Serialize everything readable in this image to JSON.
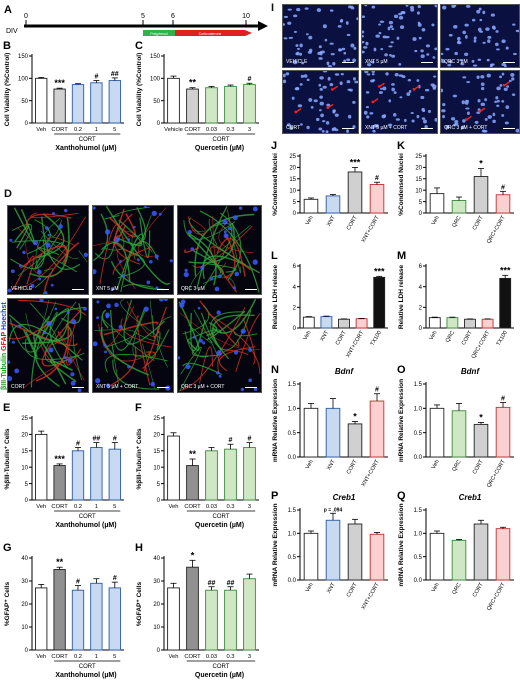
{
  "panel_letters": [
    "A",
    "B",
    "C",
    "D",
    "E",
    "F",
    "G",
    "H",
    "I",
    "J",
    "K",
    "L",
    "M",
    "N",
    "O",
    "P",
    "Q"
  ],
  "timeline": {
    "axis_label": "DIV",
    "ticks": [
      0,
      5,
      6,
      10
    ],
    "bar1": "Polyphenol",
    "bar2": "Corticosterone",
    "color1": "#2fb24a",
    "color2": "#e02020"
  },
  "colors": {
    "veh": "#ffffff",
    "cort": "#d0d0d0",
    "cort_dark": "#909090",
    "xnt": "#c8daf2",
    "xnt_edge": "#2a5aa8",
    "qrc": "#cfe8c4",
    "qrc_edge": "#3a8a3a",
    "combo": "#fbd0d0",
    "combo_edge": "#c03030",
    "tx": "#111111"
  },
  "microscopy_D": {
    "side_label_a": "βIII-Tubulin",
    "side_label_b": "GFAP",
    "side_label_c": "Hoechst",
    "captions": [
      "VEHICLE",
      "XNT 5 µM",
      "QRC 3 µM",
      "CORT",
      "XNT 5 µM + CORT",
      "QRC 3 µM + CORT"
    ]
  },
  "microscopy_I": {
    "captions": [
      "VEHICLE",
      "XNT 5 µM",
      "QRC 3 µM",
      "CORT",
      "XNT 5 µM + CORT",
      "QRC 3 µM + CORT"
    ]
  },
  "chart_data": [
    {
      "panel": "B",
      "type": "bar",
      "categories": [
        "Veh",
        "CORT",
        "0.2",
        "1",
        "5"
      ],
      "values": [
        100,
        76,
        86,
        90,
        95
      ],
      "errors": [
        2,
        2,
        2,
        5,
        6
      ],
      "group_label": "CORT",
      "xlabel": "Xanthohumol (µM)",
      "ylabel": "Cell Viability (%Control)",
      "ylim": [
        0,
        150
      ],
      "yticks": [
        0,
        50,
        100,
        150
      ],
      "significance": [
        "",
        "***",
        "",
        "#",
        "##"
      ],
      "colors": [
        "veh",
        "cort",
        "xnt",
        "xnt",
        "xnt"
      ]
    },
    {
      "panel": "C",
      "type": "bar",
      "categories": [
        "Vehicle",
        "CORT",
        "0.03",
        "0.3",
        "3"
      ],
      "values": [
        100,
        76,
        79,
        82,
        86
      ],
      "errors": [
        5,
        3,
        3,
        3,
        3
      ],
      "group_label": "CORT",
      "xlabel": "Quercetin (µM)",
      "ylabel": "Cell Viability (%Control)",
      "ylim": [
        0,
        150
      ],
      "yticks": [
        0,
        50,
        100,
        150
      ],
      "significance": [
        "",
        "**",
        "",
        "",
        "#"
      ],
      "colors": [
        "veh",
        "cort",
        "qrc",
        "qrc",
        "qrc"
      ]
    },
    {
      "panel": "E",
      "type": "bar",
      "categories": [
        "Veh",
        "CORT",
        "0.2",
        "1",
        "5"
      ],
      "values": [
        20,
        10.5,
        15,
        16,
        15.5
      ],
      "errors": [
        1,
        0.5,
        1,
        1.5,
        2
      ],
      "group_label": "CORT",
      "xlabel": "Xanthohumol (µM)",
      "ylabel": "%βIII-Tubulin⁺ Cells",
      "ylim": [
        0,
        25
      ],
      "yticks": [
        0,
        5,
        10,
        15,
        20,
        25
      ],
      "significance": [
        "",
        "***",
        "#",
        "##",
        "#"
      ],
      "colors": [
        "veh",
        "cort_dark",
        "xnt",
        "xnt",
        "xnt"
      ]
    },
    {
      "panel": "F",
      "type": "bar",
      "categories": [
        "Veh",
        "CORT",
        "0.03",
        "0.3",
        "3"
      ],
      "values": [
        19.5,
        10.5,
        15,
        15.5,
        16
      ],
      "errors": [
        1,
        2,
        1,
        1.5,
        1.5
      ],
      "group_label": "CORT",
      "xlabel": "Quercetin (µM)",
      "ylabel": "%βIII-Tubulin⁺ Cells",
      "ylim": [
        0,
        25
      ],
      "yticks": [
        0,
        5,
        10,
        15,
        20,
        25
      ],
      "significance": [
        "",
        "**",
        "",
        "#",
        "#"
      ],
      "colors": [
        "veh",
        "cort_dark",
        "qrc",
        "qrc",
        "qrc"
      ]
    },
    {
      "panel": "G",
      "type": "bar",
      "categories": [
        "Veh",
        "CORT",
        "0.2",
        "1",
        "5"
      ],
      "values": [
        27,
        35,
        26,
        29,
        27
      ],
      "errors": [
        1.5,
        1,
        2,
        2,
        2.5
      ],
      "group_label": "CORT",
      "xlabel": "Xanthohumol (µM)",
      "ylabel": "%GFAP⁺ Cells",
      "ylim": [
        0,
        40
      ],
      "yticks": [
        0,
        10,
        20,
        30,
        40
      ],
      "significance": [
        "",
        "**",
        "#",
        "",
        "#"
      ],
      "colors": [
        "veh",
        "cort_dark",
        "xnt",
        "xnt",
        "xnt"
      ]
    },
    {
      "panel": "H",
      "type": "bar",
      "categories": [
        "Veh",
        "CORT",
        "0.03",
        "0.3",
        "3"
      ],
      "values": [
        27,
        36,
        26,
        26,
        31
      ],
      "errors": [
        2,
        3,
        1.5,
        1.5,
        2
      ],
      "group_label": "CORT",
      "xlabel": "Quercetin (µM)",
      "ylabel": "%GFAP⁺ Cells",
      "ylim": [
        0,
        40
      ],
      "yticks": [
        0,
        10,
        20,
        30,
        40
      ],
      "significance": [
        "",
        "*",
        "##",
        "##",
        ""
      ],
      "colors": [
        "veh",
        "cort_dark",
        "qrc",
        "qrc",
        "qrc"
      ]
    },
    {
      "panel": "J",
      "type": "bar",
      "categories": [
        "Veh",
        "XNT",
        "CORT",
        "XNT+CORT"
      ],
      "values": [
        6,
        7.5,
        18,
        12.5
      ],
      "errors": [
        0.6,
        0.6,
        2,
        1
      ],
      "xlabel": "",
      "ylabel": "%Condensed Nuclei",
      "ylim": [
        0,
        25
      ],
      "yticks": [
        0,
        5,
        10,
        15,
        20,
        25
      ],
      "significance": [
        "",
        "",
        "***",
        "#"
      ],
      "colors": [
        "veh",
        "xnt",
        "cort",
        "combo"
      ]
    },
    {
      "panel": "K",
      "type": "bar",
      "categories": [
        "Veh",
        "QRC",
        "CORT",
        "QRC+CORT"
      ],
      "values": [
        8.5,
        5.5,
        16,
        8
      ],
      "errors": [
        2.5,
        1.5,
        3.5,
        1.5
      ],
      "xlabel": "",
      "ylabel": "%Condensed Nuclei",
      "ylim": [
        0,
        25
      ],
      "yticks": [
        0,
        5,
        10,
        15,
        20,
        25
      ],
      "significance": [
        "",
        "",
        "*",
        "#"
      ],
      "colors": [
        "veh",
        "qrc",
        "cort",
        "combo"
      ]
    },
    {
      "panel": "L",
      "type": "bar",
      "categories": [
        "Veh",
        "XNT",
        "CORT",
        "XNT+CORT",
        "TX100"
      ],
      "values": [
        1.05,
        1.1,
        0.85,
        0.9,
        4.9
      ],
      "errors": [
        0.05,
        0.05,
        0.03,
        0.03,
        0.1
      ],
      "xlabel": "",
      "ylabel": "Relative LDH release",
      "ylim": [
        0,
        6
      ],
      "yticks": [
        0,
        2,
        4,
        6
      ],
      "significance": [
        "",
        "",
        "",
        "",
        "***"
      ],
      "colors": [
        "veh",
        "xnt",
        "cort",
        "combo",
        "tx"
      ]
    },
    {
      "panel": "M",
      "type": "bar",
      "categories": [
        "Veh",
        "QRC",
        "CORT",
        "QRC+CORT",
        "TX100"
      ],
      "values": [
        1.0,
        1.0,
        0.85,
        0.85,
        4.8
      ],
      "errors": [
        0.05,
        0.05,
        0.03,
        0.03,
        0.3
      ],
      "xlabel": "",
      "ylabel": "Relative LDH release",
      "ylim": [
        0,
        6
      ],
      "yticks": [
        0,
        2,
        4,
        6
      ],
      "significance": [
        "",
        "",
        "",
        "",
        "***"
      ],
      "colors": [
        "veh",
        "qrc",
        "cort",
        "combo",
        "tx"
      ]
    },
    {
      "panel": "N",
      "type": "bar",
      "title": "Bdnf",
      "categories": [
        "Veh",
        "XNT",
        "CORT",
        "XNT+CORT"
      ],
      "values": [
        1.0,
        1.0,
        0.68,
        1.15
      ],
      "errors": [
        0.1,
        0.2,
        0.05,
        0.15
      ],
      "xlabel": "",
      "ylabel": "mRNA Relative Expression",
      "ylim": [
        0,
        1.5
      ],
      "yticks": [
        0,
        0.5,
        1.0,
        1.5
      ],
      "significance": [
        "",
        "",
        "*",
        "#"
      ],
      "colors": [
        "veh",
        "xnt",
        "cort",
        "combo"
      ]
    },
    {
      "panel": "O",
      "type": "bar",
      "title": "Bdnf",
      "categories": [
        "Veh",
        "QRC",
        "CORT",
        "QRC+CORT"
      ],
      "values": [
        1.0,
        0.95,
        0.67,
        1.02
      ],
      "errors": [
        0.07,
        0.15,
        0.04,
        0.1
      ],
      "xlabel": "",
      "ylabel": "mRNA Relative Expression",
      "ylim": [
        0,
        1.5
      ],
      "yticks": [
        0,
        0.5,
        1.0,
        1.5
      ],
      "significance": [
        "",
        "",
        "*",
        "#"
      ],
      "colors": [
        "veh",
        "qrc",
        "cort",
        "combo"
      ]
    },
    {
      "panel": "P",
      "type": "bar",
      "title": "Creb1",
      "categories": [
        "Veh",
        "XNT",
        "CORT",
        "XNT+CORT"
      ],
      "values": [
        1.0,
        1.28,
        1.2,
        0.98
      ],
      "errors": [
        0.05,
        0.15,
        0.1,
        0.04
      ],
      "xlabel": "",
      "ylabel": "mRNA Relative Expression",
      "ylim": [
        0,
        1.5
      ],
      "yticks": [
        0,
        0.5,
        1.0,
        1.5
      ],
      "significance": [
        "",
        "p = .094",
        "",
        ""
      ],
      "colors": [
        "veh",
        "xnt",
        "cort",
        "combo"
      ]
    },
    {
      "panel": "Q",
      "type": "bar",
      "title": "Creb1",
      "categories": [
        "Veh",
        "QRC",
        "CORT",
        "QRC+CORT"
      ],
      "values": [
        1.0,
        0.85,
        1.2,
        1.1
      ],
      "errors": [
        0.05,
        0.02,
        0.08,
        0.03
      ],
      "xlabel": "",
      "ylabel": "mRNA Relative Expression",
      "ylim": [
        0,
        1.5
      ],
      "yticks": [
        0,
        0.5,
        1.0,
        1.5
      ],
      "significance": [
        "",
        "",
        "",
        ""
      ],
      "colors": [
        "veh",
        "qrc",
        "cort",
        "combo"
      ]
    }
  ]
}
